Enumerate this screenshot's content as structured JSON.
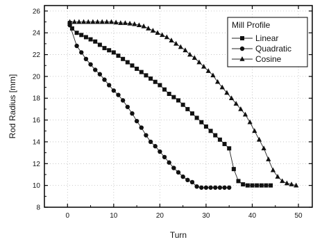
{
  "chart_data": {
    "type": "scatter",
    "title": "",
    "xlabel": "Turn",
    "ylabel": "Rod Radius [mm]",
    "xlim": [
      -5,
      53
    ],
    "ylim": [
      8,
      26.5
    ],
    "x_ticks": [
      0,
      10,
      20,
      30,
      40,
      50
    ],
    "y_ticks": [
      8,
      10,
      12,
      14,
      16,
      18,
      20,
      22,
      24,
      26
    ],
    "grid": true,
    "legend": {
      "title": "Mill Profile",
      "placement": "top-right"
    },
    "series": [
      {
        "name": "Linear",
        "marker": "square",
        "x": [
          0.5,
          1,
          2,
          3,
          4,
          5,
          6,
          7,
          8,
          9,
          10,
          11,
          12,
          13,
          14,
          15,
          16,
          17,
          18,
          19,
          20,
          21,
          22,
          23,
          24,
          25,
          26,
          27,
          28,
          29,
          30,
          31,
          32,
          33,
          34,
          35,
          36,
          37,
          38,
          39,
          40,
          41,
          42,
          43,
          44
        ],
        "y": [
          24.9,
          24.4,
          24.0,
          23.8,
          23.6,
          23.4,
          23.2,
          22.9,
          22.6,
          22.4,
          22.2,
          21.9,
          21.6,
          21.3,
          21.0,
          20.7,
          20.4,
          20.1,
          19.8,
          19.5,
          19.2,
          18.8,
          18.4,
          18.1,
          17.8,
          17.4,
          17.0,
          16.6,
          16.2,
          15.8,
          15.4,
          15.0,
          14.6,
          14.2,
          13.8,
          13.4,
          11.5,
          10.4,
          10.1,
          10.0,
          10.0,
          10.0,
          10.0,
          10.0,
          10.0
        ]
      },
      {
        "name": "Quadratic",
        "marker": "circle",
        "x": [
          0.5,
          2,
          3,
          4,
          5,
          6,
          7,
          8,
          9,
          10,
          11,
          12,
          13,
          14,
          15,
          16,
          17,
          18,
          19,
          20,
          21,
          22,
          23,
          24,
          25,
          26,
          27,
          28,
          29,
          30,
          31,
          32,
          33,
          34,
          35
        ],
        "y": [
          24.7,
          22.8,
          22.2,
          21.6,
          21.1,
          20.6,
          20.2,
          19.7,
          19.2,
          18.7,
          18.3,
          17.8,
          17.2,
          16.6,
          15.9,
          15.3,
          14.6,
          14.0,
          13.6,
          13.1,
          12.6,
          12.1,
          11.6,
          11.2,
          10.8,
          10.5,
          10.3,
          9.9,
          9.8,
          9.8,
          9.8,
          9.8,
          9.8,
          9.8,
          9.8
        ]
      },
      {
        "name": "Cosine",
        "marker": "triangle",
        "x": [
          0.5,
          1.5,
          2.5,
          3.5,
          4.5,
          5.5,
          6.5,
          7.5,
          8.5,
          9.5,
          10.5,
          11.5,
          12.5,
          13.5,
          14.5,
          15.5,
          16.5,
          17.5,
          18.5,
          19.5,
          20.5,
          21.5,
          22.5,
          23.5,
          24.5,
          25.5,
          26.5,
          27.5,
          28.5,
          29.5,
          30.5,
          31.5,
          32.5,
          33.5,
          34.5,
          35.5,
          36.5,
          37.5,
          38.5,
          39.5,
          40.5,
          41.5,
          42.5,
          43.5,
          44.5,
          45.5,
          46.5,
          47.5,
          48.5,
          49.5
        ],
        "y": [
          25.0,
          25.0,
          25.0,
          25.0,
          25.0,
          25.0,
          25.0,
          25.0,
          25.0,
          25.0,
          24.95,
          24.9,
          24.9,
          24.85,
          24.8,
          24.7,
          24.6,
          24.4,
          24.2,
          24.0,
          23.8,
          23.6,
          23.3,
          23.0,
          22.7,
          22.4,
          22.0,
          21.7,
          21.3,
          20.9,
          20.5,
          20.1,
          19.5,
          19.0,
          18.5,
          18.0,
          17.5,
          17.0,
          16.5,
          15.8,
          15.0,
          14.2,
          13.4,
          12.4,
          11.4,
          10.8,
          10.4,
          10.2,
          10.1,
          10.0
        ]
      }
    ]
  }
}
